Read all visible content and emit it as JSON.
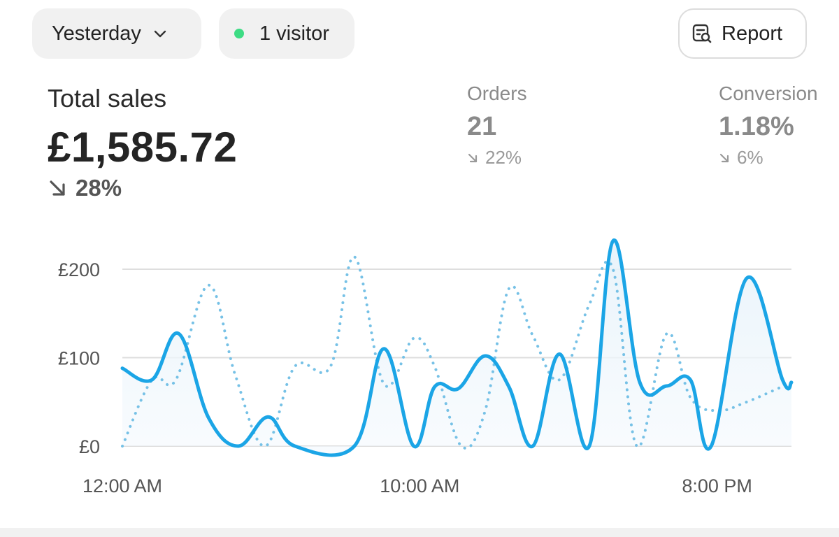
{
  "toolbar": {
    "range_label": "Yesterday",
    "visitors_label": "1 visitor",
    "report_label": "Report",
    "live_dot_color": "#3ddc84"
  },
  "metrics": {
    "total_sales": {
      "title": "Total sales",
      "value": "£1,585.72",
      "change": "28%",
      "direction": "down"
    },
    "orders": {
      "title": "Orders",
      "value": "21",
      "change": "22%",
      "direction": "down"
    },
    "conversion": {
      "title": "Conversion",
      "value": "1.18%",
      "change": "6%",
      "direction": "down"
    }
  },
  "chart_data": {
    "type": "line",
    "ylim": [
      0,
      200
    ],
    "y_ticks": [
      0,
      100,
      200
    ],
    "y_tick_labels": [
      "£0",
      "£100",
      "£200"
    ],
    "x_tick_labels": [
      "12:00 AM",
      "10:00 AM",
      "8:00 PM"
    ],
    "x_tick_hours": [
      0,
      10,
      20
    ],
    "x_range_hours": [
      0,
      22.5
    ],
    "grid": true,
    "series": [
      {
        "style": "solid",
        "color": "#1ba5e6",
        "x": [
          0,
          1,
          1.9,
          2.9,
          3.9,
          4.9,
          5.8,
          7.8,
          8.8,
          9.8,
          10.5,
          11.3,
          12.2,
          13.0,
          13.8,
          14.7,
          15.7,
          16.5,
          17.4,
          18.3,
          19.1,
          19.8,
          21.0,
          22.2,
          22.5
        ],
        "y": [
          88,
          75,
          127,
          32,
          0,
          33,
          0,
          0,
          110,
          0,
          67,
          65,
          102,
          67,
          0,
          104,
          0,
          232,
          72,
          68,
          75,
          0,
          190,
          75,
          72
        ]
      },
      {
        "style": "dotted",
        "color": "#76c1e6",
        "x": [
          0,
          1,
          1.8,
          2.9,
          3.8,
          4.8,
          5.8,
          7.0,
          7.8,
          8.8,
          9.8,
          10.5,
          11.4,
          12.2,
          13.0,
          13.8,
          14.7,
          15.7,
          16.5,
          17.3,
          18.3,
          19.1,
          20.0,
          21.0,
          22.5
        ],
        "y": [
          0,
          75,
          75,
          182,
          80,
          0,
          90,
          90,
          214,
          70,
          122,
          90,
          0,
          40,
          178,
          125,
          75,
          160,
          200,
          0,
          127,
          55,
          40,
          50,
          72
        ]
      }
    ]
  }
}
